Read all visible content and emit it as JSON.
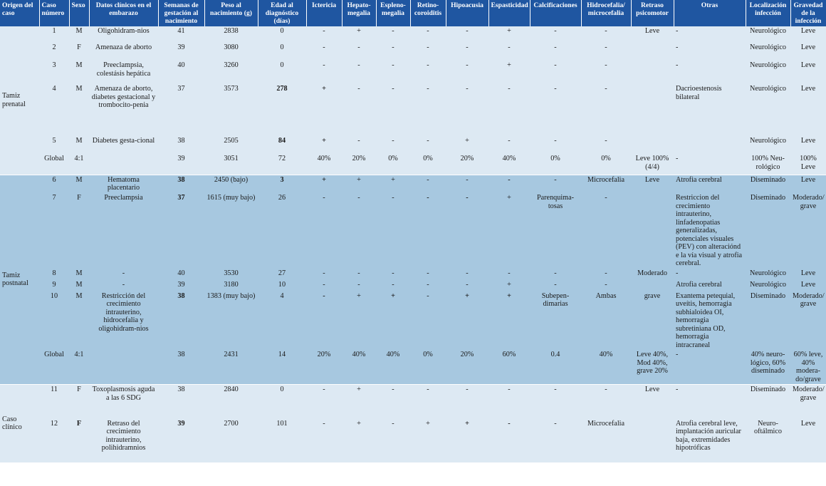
{
  "headers": {
    "origen": "Origen del caso",
    "caso": "Caso número",
    "sexo": "Sexo",
    "datos": "Datos clínicos en el embarazo",
    "semanas": "Semanas de gestación al nacimiento",
    "peso": "Peso al nacimiento (g)",
    "edad": "Edad al diagnóstico (días)",
    "ictericia": "Ictericia",
    "hepato": "Hepato-megalia",
    "espleno": "Espleno-megalia",
    "retino": "Retino-coroiditis",
    "hipoacusia": "Hipoacusia",
    "espasticidad": "Espasticidad",
    "calcificaciones": "Calcificaciones",
    "hidrocefalia": "Hidrocefalia/ microcefalia",
    "retraso": "Retraso psicomotor",
    "otras": "Otras",
    "localizacion": "Localización infección",
    "gravedad": "Gravedad de la infección"
  },
  "groups": [
    {
      "origin": "Tamiz prenatal",
      "rows": [
        {
          "caso": "1",
          "sexo": "M",
          "datos": "Oligohidram-nios",
          "semanas": "41",
          "peso": "2838",
          "edad": "0",
          "ict": "-",
          "hep": "+",
          "esp": "-",
          "ret": "-",
          "hip": "-",
          "espas": "+",
          "calc": "-",
          "hidro": "-",
          "retraso": "Leve",
          "otras": "-",
          "loc": "Neurológico",
          "grav": "Leve"
        },
        {
          "caso": "2",
          "sexo": "F",
          "datos": "Amenaza de aborto",
          "semanas": "39",
          "peso": "3080",
          "edad": "0",
          "ict": "-",
          "hep": "-",
          "esp": "-",
          "ret": "-",
          "hip": "-",
          "espas": "-",
          "calc": "-",
          "hidro": "-",
          "retraso": "",
          "otras": "-",
          "loc": "Neurológico",
          "grav": "Leve"
        },
        {
          "caso": "3",
          "sexo": "M",
          "datos": "Preeclampsia, colestásis hepática",
          "semanas": "40",
          "peso": "3260",
          "edad": "0",
          "ict": "-",
          "hep": "-",
          "esp": "-",
          "ret": "-",
          "hip": "-",
          "espas": "+",
          "calc": "-",
          "hidro": "-",
          "retraso": "",
          "otras": "-",
          "loc": "Neurológico",
          "grav": "Leve"
        },
        {
          "caso": "4",
          "sexo": "M",
          "datos": "Amenaza de aborto, diabetes gestacional y trombocito-penia",
          "semanas": "37",
          "peso": "3573",
          "edad": "278",
          "ict": "+",
          "hep": "-",
          "esp": "-",
          "ret": "-",
          "hip": "-",
          "espas": "-",
          "calc": "-",
          "hidro": "-",
          "retraso": "",
          "otras": "Dacrioestenosis bilateral",
          "loc": "Neurológico",
          "grav": "Leve"
        },
        {
          "caso": "5",
          "sexo": "M",
          "datos": "Diabetes gesta-cional",
          "semanas": "38",
          "peso": "2505",
          "edad": "84",
          "ict": "+",
          "hep": "-",
          "esp": "-",
          "ret": "-",
          "hip": "+",
          "espas": "-",
          "calc": "-",
          "hidro": "-",
          "retraso": "",
          "otras": "",
          "loc": "Neurológico",
          "grav": "Leve"
        },
        {
          "caso": "Global",
          "sexo": "4:1",
          "datos": "",
          "semanas": "39",
          "peso": "3051",
          "edad": "72",
          "ict": "40%",
          "hep": "20%",
          "esp": "0%",
          "ret": "0%",
          "hip": "20%",
          "espas": "40%",
          "calc": "0%",
          "hidro": "0%",
          "retraso": "Leve 100% (4/4)",
          "otras": "-",
          "loc": "100% Neu-rológico",
          "grav": "100% Leve"
        }
      ]
    },
    {
      "origin": "Tamiz postnatal",
      "rows": [
        {
          "caso": "6",
          "sexo": "M",
          "datos": "Hematoma placentario",
          "semanas": "38",
          "peso": "2450 (bajo)",
          "edad": "3",
          "ict": "+",
          "hep": "+",
          "esp": "+",
          "ret": "-",
          "hip": "-",
          "espas": "-",
          "calc": "-",
          "hidro": "Microcefalia",
          "retraso": "Leve",
          "otras": "Atrofia cerebral",
          "loc": "Diseminado",
          "grav": "Leve"
        },
        {
          "caso": "7",
          "sexo": "F",
          "datos": "Preeclampsia",
          "semanas": "37",
          "peso": "1615 (muy bajo)",
          "edad": "26",
          "ict": "-",
          "hep": "-",
          "esp": "-",
          "ret": "-",
          "hip": "-",
          "espas": "+",
          "calc": "Parenquima-tosas",
          "hidro": "-",
          "retraso": "",
          "otras": "Restriccion del crecimiento intrauterino, linfadenopatias generalizadas, potenciales visuales (PEV) con alteraciónd e la vía visual y atrofia cerebral.",
          "loc": "Diseminado",
          "grav": "Moderado/ grave"
        },
        {
          "caso": "8",
          "sexo": "M",
          "datos": "-",
          "semanas": "40",
          "peso": "3530",
          "edad": "27",
          "ict": "-",
          "hep": "-",
          "esp": "-",
          "ret": "-",
          "hip": "-",
          "espas": "-",
          "calc": "-",
          "hidro": "-",
          "retraso": "Moderado",
          "otras": "-",
          "loc": "Neurológico",
          "grav": "Leve"
        },
        {
          "caso": "9",
          "sexo": "M",
          "datos": "-",
          "semanas": "39",
          "peso": "3180",
          "edad": "10",
          "ict": "-",
          "hep": "-",
          "esp": "-",
          "ret": "-",
          "hip": "-",
          "espas": "+",
          "calc": "-",
          "hidro": "-",
          "retraso": "",
          "otras": "Atrofia cerebral",
          "loc": "Neurológico",
          "grav": "Leve"
        },
        {
          "caso": "10",
          "sexo": "M",
          "datos": "Restricción del crecimiento intrauterino, hidrocefalia y oligohidram-nios",
          "semanas": "38",
          "peso": "1383 (muy bajo)",
          "edad": "4",
          "ict": "-",
          "hep": "+",
          "esp": "+",
          "ret": "-",
          "hip": "+",
          "espas": "+",
          "calc": "Subepen-dimarias",
          "hidro": "Ambas",
          "retraso": "grave",
          "otras": "Exantema petequial, uveítis, hemorragia subhialoidea OI, hemorragia subretiniana OD, hemorragia intracraneal",
          "loc": "Diseminado",
          "grav": "Moderado/ grave"
        },
        {
          "caso": "Global",
          "sexo": "4:1",
          "datos": "",
          "semanas": "38",
          "peso": "2431",
          "edad": "14",
          "ict": "20%",
          "hep": "40%",
          "esp": "40%",
          "ret": "0%",
          "hip": "20%",
          "espas": "60%",
          "calc": "0.4",
          "hidro": "40%",
          "retraso": "Leve 40%, Mod 40%, grave 20%",
          "otras": "-",
          "loc": "40% neuro-lógico, 60% diseminado",
          "grav": "60% leve, 40% modera-do/grave"
        }
      ]
    },
    {
      "origin": "Caso clínico",
      "rows": [
        {
          "caso": "11",
          "sexo": "F",
          "datos": "Toxoplasmosis aguda a las 6 SDG",
          "semanas": "38",
          "peso": "2840",
          "edad": "0",
          "ict": "-",
          "hep": "+",
          "esp": "-",
          "ret": "-",
          "hip": "-",
          "espas": "-",
          "calc": "-",
          "hidro": "-",
          "retraso": "Leve",
          "otras": "-",
          "loc": "Diseminado",
          "grav": "Moderado/ grave"
        },
        {
          "caso": "12",
          "sexo": "F",
          "datos": "Retraso del crecimiento intrauterino, polihidramnios",
          "semanas": "39",
          "peso": "2700",
          "edad": "101",
          "ict": "-",
          "hep": "+",
          "esp": "-",
          "ret": "+",
          "hip": "+",
          "espas": "-",
          "calc": "-",
          "hidro": "Microcefalia",
          "retraso": "",
          "otras": "Atrofia cerebral leve, implantación auricular baja, extremidades hipotróficas",
          "loc": "Neuro-oftálmico",
          "grav": "Leve"
        }
      ]
    }
  ]
}
